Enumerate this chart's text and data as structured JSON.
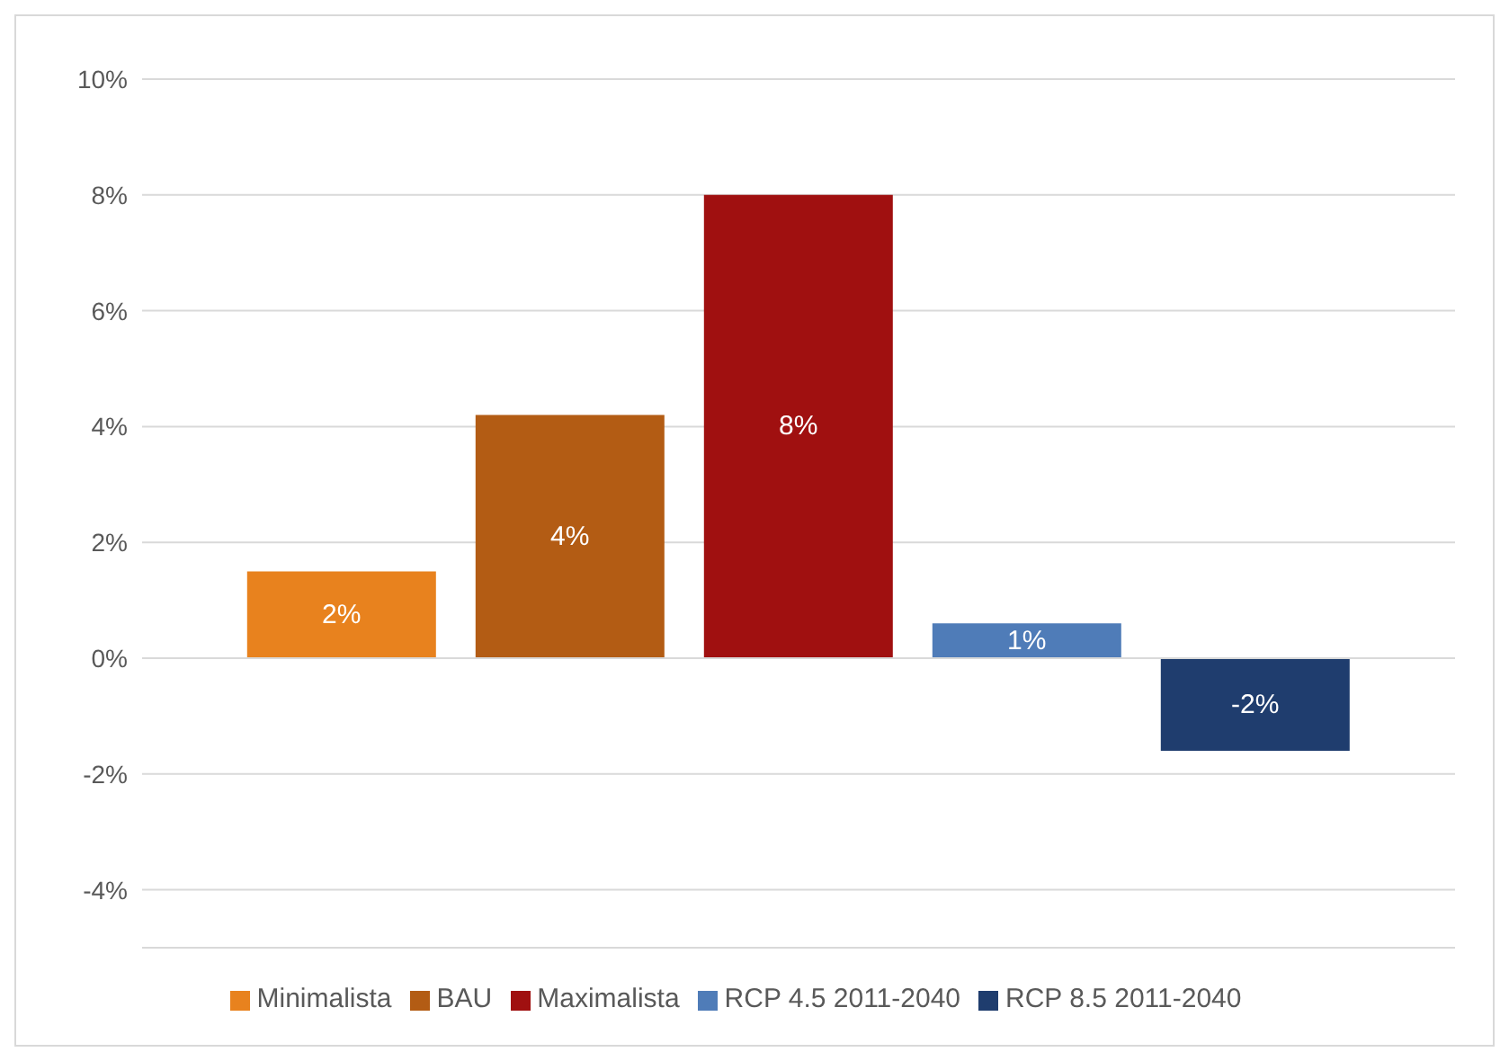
{
  "chart_data": {
    "type": "bar",
    "categories": [
      null
    ],
    "series": [
      {
        "name": "Minimalista",
        "color": "#e8821e",
        "values": [
          1.5
        ],
        "value_labels": [
          "2%"
        ]
      },
      {
        "name": "BAU",
        "color": "#b35c14",
        "values": [
          4.2
        ],
        "value_labels": [
          "4%"
        ]
      },
      {
        "name": "Maximalista",
        "color": "#a01010",
        "values": [
          8.0
        ],
        "value_labels": [
          "8%"
        ]
      },
      {
        "name": "RCP 4.5 2011-2040",
        "color": "#4f7cb8",
        "values": [
          0.6
        ],
        "value_labels": [
          "1%"
        ]
      },
      {
        "name": "RCP 8.5 2011-2040",
        "color": "#1f3d6e",
        "values": [
          -1.6
        ],
        "value_labels": [
          "-2%"
        ]
      }
    ],
    "ylim": [
      -5,
      10
    ],
    "yticks": [
      {
        "value": -4,
        "label": "-4%"
      },
      {
        "value": -2,
        "label": "-2%"
      },
      {
        "value": 0,
        "label": "0%"
      },
      {
        "value": 2,
        "label": "2%"
      },
      {
        "value": 4,
        "label": "4%"
      },
      {
        "value": 6,
        "label": "6%"
      },
      {
        "value": 8,
        "label": "8%"
      },
      {
        "value": 10,
        "label": "10%"
      }
    ],
    "grid": "y",
    "legend": "bottom"
  }
}
